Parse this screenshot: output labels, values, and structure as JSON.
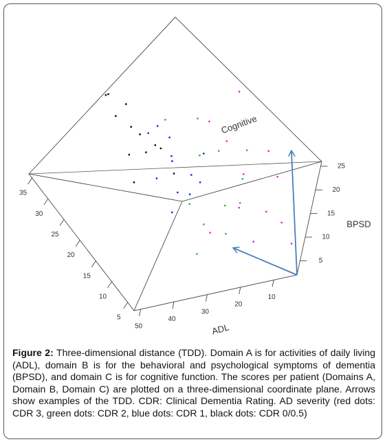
{
  "chart_data": {
    "type": "scatter3d",
    "x_label": "ADL",
    "y_label": "Cognitive",
    "z_label": "BPSD",
    "xlim": [
      52,
      3
    ],
    "xticks": [
      10,
      20,
      30,
      40,
      50
    ],
    "ylim": [
      3,
      36
    ],
    "yticks": [
      5,
      10,
      15,
      20,
      25,
      30,
      35
    ],
    "zlim": [
      2,
      26
    ],
    "zticks": [
      5,
      10,
      15,
      20,
      25
    ],
    "series": [
      {
        "color": "#000000",
        "x": [
          37,
          35,
          32,
          30,
          27,
          35,
          30,
          25,
          32,
          23,
          32,
          35
        ],
        "y": [
          33,
          31,
          29,
          28,
          26,
          34,
          33,
          26,
          24,
          23,
          28,
          23
        ],
        "z": [
          19,
          16,
          15,
          14,
          13,
          18,
          16,
          12,
          14,
          9,
          10,
          9
        ]
      },
      {
        "color": "#1e1ed8",
        "x": [
          23,
          25,
          20,
          27,
          18,
          27,
          30,
          23,
          15,
          32,
          25,
          30
        ],
        "y": [
          26,
          23,
          21,
          21,
          20,
          18,
          26,
          18,
          23,
          20,
          28,
          16
        ],
        "z": [
          14,
          13,
          10,
          14,
          9,
          10,
          16,
          9,
          12,
          12,
          15,
          8
        ]
      },
      {
        "color": "#1fbf1f",
        "x": [
          18,
          13,
          10,
          15,
          23,
          8,
          20,
          25,
          27,
          13,
          23,
          18
        ],
        "y": [
          24,
          21,
          16,
          15,
          13,
          18,
          20,
          16,
          10,
          13,
          28,
          11
        ],
        "z": [
          19,
          14,
          12,
          8,
          7,
          16,
          15,
          9,
          4,
          10,
          16,
          6
        ]
      },
      {
        "color": "#e020d8",
        "x": [
          8,
          3,
          5,
          10,
          15,
          5,
          13,
          23,
          8,
          3,
          18,
          10
        ],
        "y": [
          23,
          13,
          8,
          10,
          18,
          15,
          13,
          11,
          10,
          6,
          21,
          16
        ],
        "z": [
          24,
          14,
          9,
          4,
          19,
          18,
          9,
          7,
          10,
          6,
          21,
          13
        ]
      }
    ]
  },
  "caption": {
    "label": "Figure 2:",
    "text": "Three-dimensional distance (TDD). Domain A is for activities of daily living (ADL), domain B is for the behavioral and psychological symptoms of dementia (BPSD), and domain C is for cognitive function. The scores per patient (Domains A, Domain B, Domain C) are plotted on a three-dimensional coordinate plane. Arrows show examples of the TDD. CDR: Clinical Dementia Rating. AD severity (red dots: CDR 3, green dots: CDR 2, blue dots: CDR 1, black dots: CDR 0/0.5)"
  }
}
